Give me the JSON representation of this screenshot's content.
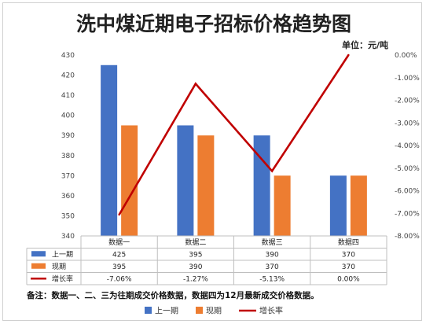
{
  "colors": {
    "prev": "#4472C4",
    "curr": "#ED7D31",
    "rate": "#C00000"
  },
  "chart_data": {
    "type": "bar",
    "title": "洗中煤近期电子招标价格趋势图",
    "unit_label": "单位：元/吨",
    "categories": [
      "数据一",
      "数据二",
      "数据三",
      "数据四"
    ],
    "series": [
      {
        "name": "上一期",
        "kind": "bar",
        "axis": "left",
        "values": [
          425,
          395,
          390,
          370
        ],
        "labels": [
          "425",
          "395",
          "390",
          "370"
        ]
      },
      {
        "name": "现期",
        "kind": "bar",
        "axis": "left",
        "values": [
          395,
          390,
          370,
          370
        ],
        "labels": [
          "395",
          "390",
          "370",
          "370"
        ]
      },
      {
        "name": "增长率",
        "kind": "line",
        "axis": "right",
        "values": [
          -7.06,
          -1.27,
          -5.13,
          0.0
        ],
        "labels": [
          "-7.06%",
          "-1.27%",
          "-5.13%",
          "0.00%"
        ]
      }
    ],
    "y_left": {
      "min": 340,
      "max": 430,
      "ticks": [
        "340",
        "350",
        "360",
        "370",
        "380",
        "390",
        "400",
        "410",
        "420",
        "430"
      ]
    },
    "y_right": {
      "min": -8,
      "max": 0,
      "ticks": [
        "-8.00%",
        "-7.00%",
        "-6.00%",
        "-5.00%",
        "-4.00%",
        "-3.00%",
        "-2.00%",
        "-1.00%",
        "0.00%"
      ]
    },
    "grid": false,
    "data_table": true,
    "legend_position": "bottom",
    "note": "备注：数据一、二、三为往期成交价格数据，数据四为12月最新成交价格数据。"
  }
}
